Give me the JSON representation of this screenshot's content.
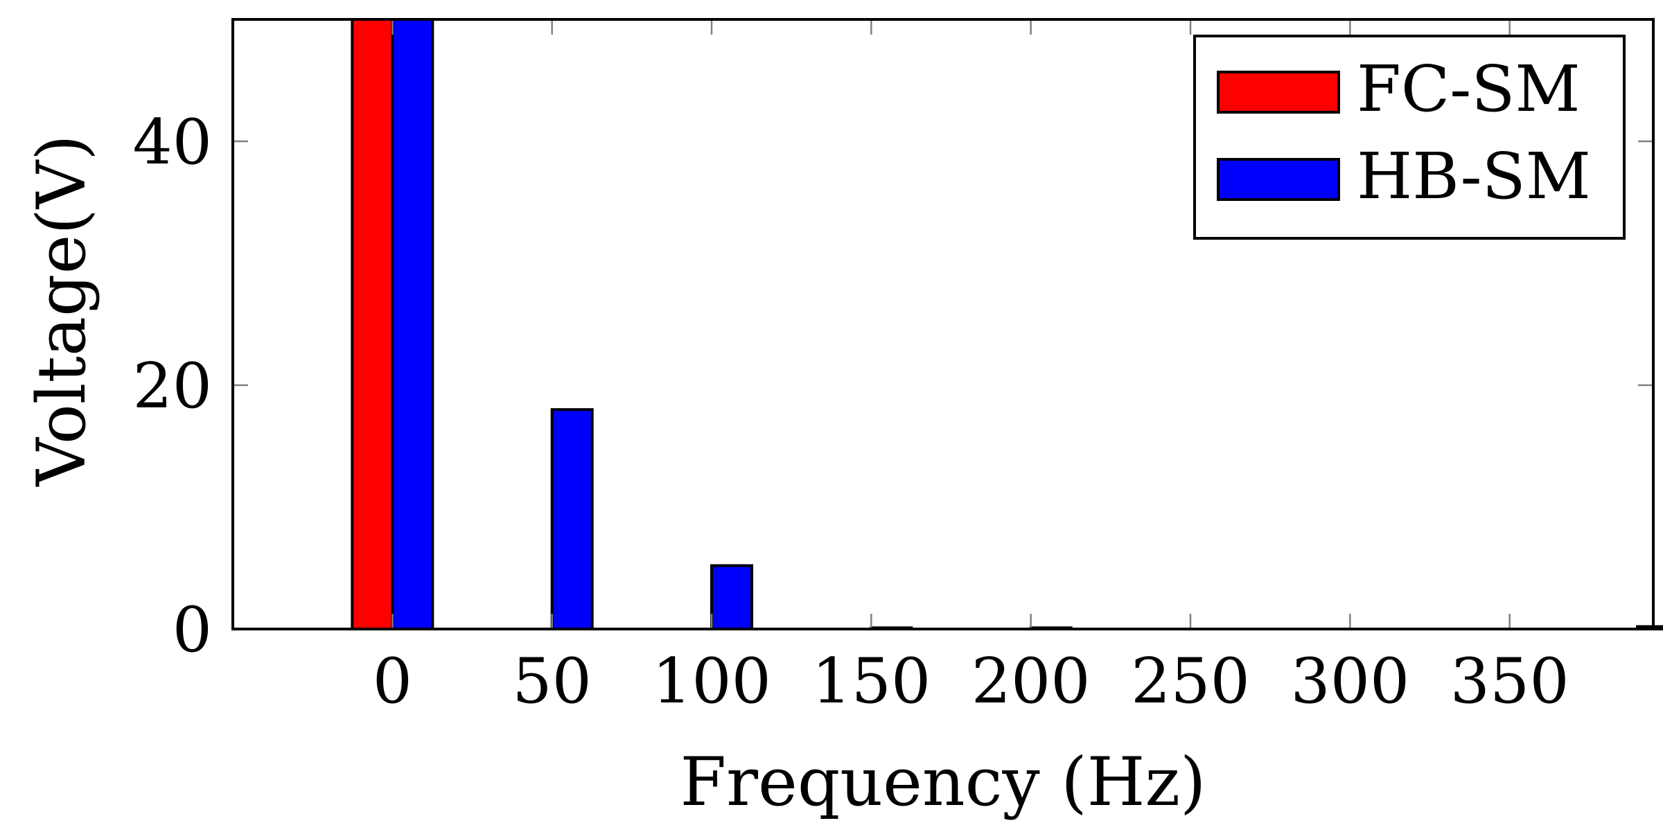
{
  "chart_data": {
    "type": "bar",
    "title": "",
    "xlabel": "Frequency (Hz)",
    "ylabel": "Voltage(V)",
    "x": [
      0,
      50,
      100,
      150,
      200,
      250,
      300,
      350,
      390
    ],
    "xlim": [
      -50,
      395
    ],
    "ylim": [
      0,
      50
    ],
    "x_ticks": [
      "0",
      "50",
      "100",
      "150",
      "200",
      "250",
      "300",
      "350"
    ],
    "y_ticks": [
      "0",
      "20",
      "40"
    ],
    "grid": false,
    "legend_position": "top-right",
    "series": [
      {
        "name": "FC-SM",
        "color": "#ff0000",
        "values": [
          50,
          0,
          0,
          0,
          0,
          0,
          0,
          0,
          0
        ]
      },
      {
        "name": "HB-SM",
        "color": "#0000ff",
        "values": [
          50,
          18,
          5.2,
          0.1,
          0.1,
          0,
          0,
          0,
          0.2
        ]
      }
    ]
  }
}
